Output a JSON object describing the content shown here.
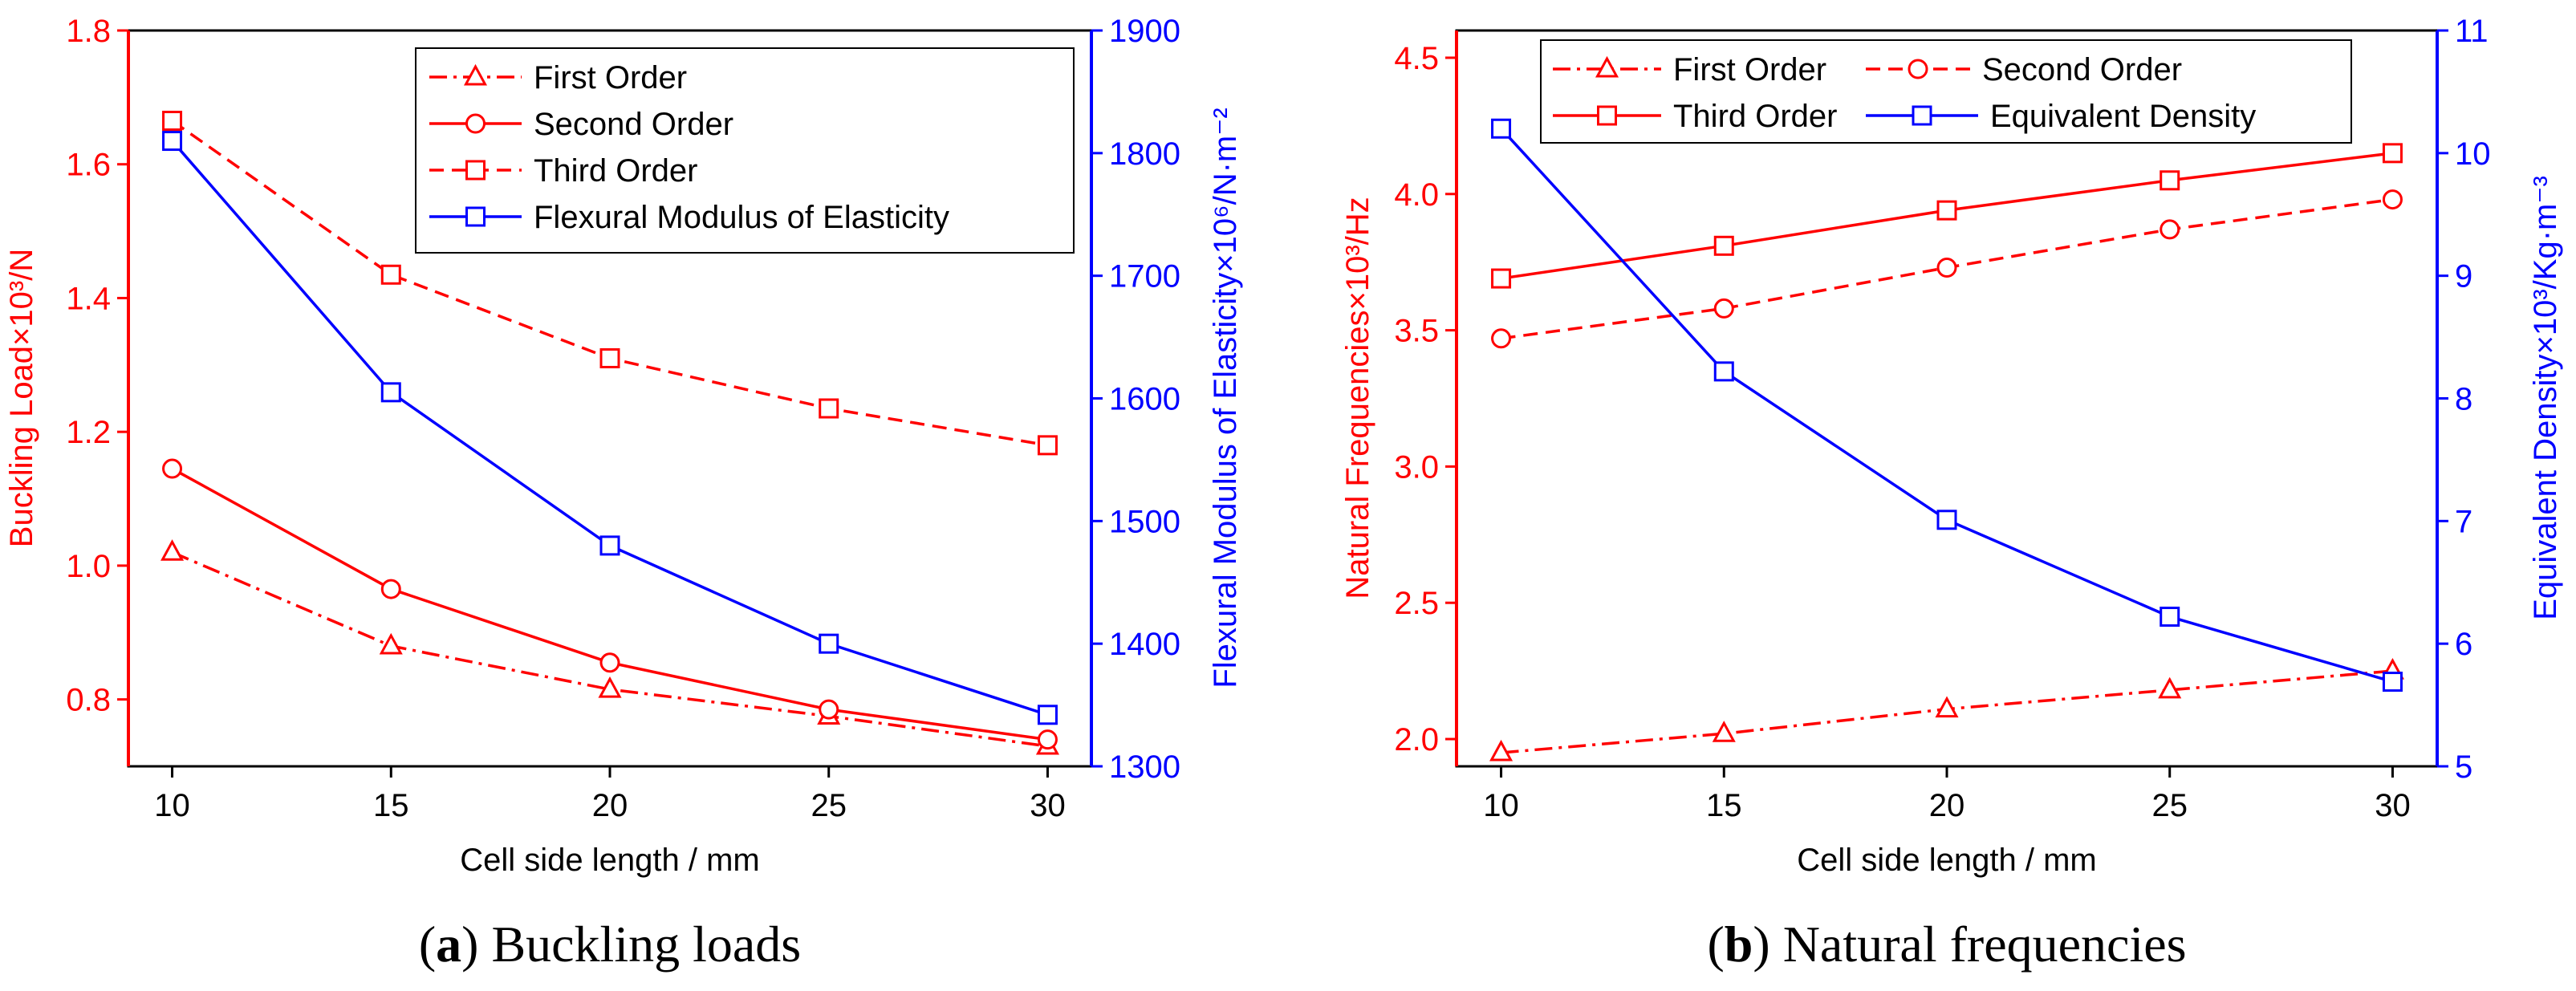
{
  "colors": {
    "red": "#ff0000",
    "blue": "#0000ff",
    "black": "#000000"
  },
  "chart_data": [
    {
      "type": "line",
      "x": [
        10,
        15,
        20,
        25,
        30
      ],
      "x_ticks": [
        "10",
        "15",
        "20",
        "25",
        "30"
      ],
      "xlim": [
        9,
        31
      ],
      "xlabel": "Cell side length / mm",
      "ylabel_left": "Buckling Load×10³/N",
      "ylim_left": [
        0.7,
        1.8
      ],
      "y_ticks_left": [
        "0.8",
        "1.0",
        "1.2",
        "1.4",
        "1.6",
        "1.8"
      ],
      "ylabel_right": "Flexural Modulus of Elasticity×10⁶/N·m⁻²",
      "ylim_right": [
        1300,
        1900
      ],
      "y_ticks_right": [
        "1300",
        "1400",
        "1500",
        "1600",
        "1700",
        "1800",
        "1900"
      ],
      "series": [
        {
          "name": "First Order",
          "axis": "left",
          "color": "#ff0000",
          "dash": "dashdot",
          "marker": "triangle",
          "values": [
            1.02,
            0.88,
            0.815,
            0.775,
            0.73
          ]
        },
        {
          "name": "Second Order",
          "axis": "left",
          "color": "#ff0000",
          "dash": "solid",
          "marker": "circle",
          "values": [
            1.145,
            0.965,
            0.855,
            0.785,
            0.74
          ]
        },
        {
          "name": "Third Order",
          "axis": "left",
          "color": "#ff0000",
          "dash": "dashed",
          "marker": "square",
          "values": [
            1.665,
            1.435,
            1.31,
            1.235,
            1.18
          ]
        },
        {
          "name": "Flexural Modulus of Elasticity",
          "axis": "right",
          "color": "#0000ff",
          "dash": "solid",
          "marker": "square",
          "values": [
            1810,
            1605,
            1480,
            1400,
            1342
          ]
        }
      ],
      "legend": "top-right",
      "caption_bold": "a",
      "caption_text": "Buckling loads"
    },
    {
      "type": "line",
      "x": [
        10,
        15,
        20,
        25,
        30
      ],
      "x_ticks": [
        "10",
        "15",
        "20",
        "25",
        "30"
      ],
      "xlim": [
        9,
        31
      ],
      "xlabel": "Cell side length / mm",
      "ylabel_left": "Natural Frequencies×10³/Hz",
      "ylim_left": [
        1.9,
        4.6
      ],
      "y_ticks_left": [
        "2.0",
        "2.5",
        "3.0",
        "3.5",
        "4.0",
        "4.5"
      ],
      "ylabel_right": "Equivalent Density×10³/Kg·m⁻³",
      "ylim_right": [
        5,
        11
      ],
      "y_ticks_right": [
        "5",
        "6",
        "7",
        "8",
        "9",
        "10",
        "11"
      ],
      "series": [
        {
          "name": "First Order",
          "axis": "left",
          "color": "#ff0000",
          "dash": "dashdot",
          "marker": "triangle",
          "values": [
            1.95,
            2.02,
            2.11,
            2.18,
            2.25
          ]
        },
        {
          "name": "Second Order",
          "axis": "left",
          "color": "#ff0000",
          "dash": "dashed",
          "marker": "circle",
          "values": [
            3.47,
            3.58,
            3.73,
            3.87,
            3.98
          ]
        },
        {
          "name": "Third Order",
          "axis": "left",
          "color": "#ff0000",
          "dash": "solid",
          "marker": "square",
          "values": [
            3.69,
            3.81,
            3.94,
            4.05,
            4.15
          ]
        },
        {
          "name": "Equivalent Density",
          "axis": "right",
          "color": "#0000ff",
          "dash": "solid",
          "marker": "square",
          "values": [
            10.2,
            8.22,
            7.01,
            6.22,
            5.69
          ]
        }
      ],
      "legend": "top",
      "caption_bold": "b",
      "caption_text": "Natural frequencies"
    }
  ]
}
